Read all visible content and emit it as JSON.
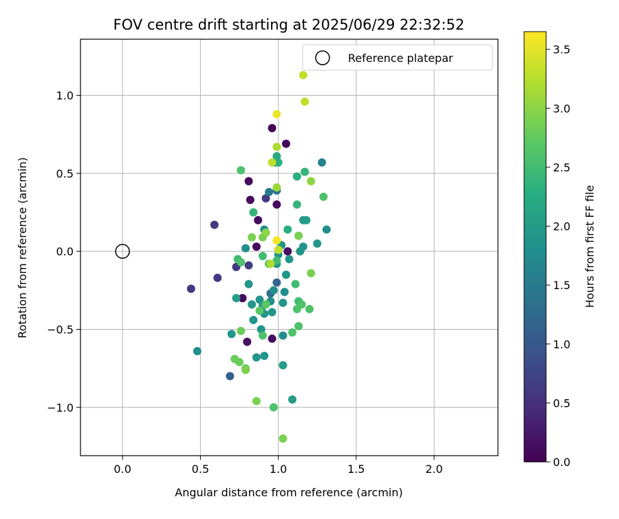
{
  "chart_data": {
    "type": "scatter",
    "title": "FOV centre drift starting at 2025/06/29 22:32:52",
    "xlabel": "Angular distance from reference (arcmin)",
    "ylabel": "Rotation from reference (arcmin)",
    "xlim": [
      -0.27,
      2.41
    ],
    "ylim": [
      -1.31,
      1.36
    ],
    "xticks": [
      0.0,
      0.5,
      1.0,
      1.5,
      2.0
    ],
    "xtick_labels": [
      "0.0",
      "0.5",
      "1.0",
      "1.5",
      "2.0"
    ],
    "yticks": [
      -1.0,
      -0.5,
      0.0,
      0.5,
      1.0
    ],
    "ytick_labels": [
      "−1.0",
      "−0.5",
      "0.0",
      "0.5",
      "1.0"
    ],
    "grid": true,
    "legend": {
      "placement": "top-right",
      "entries": [
        "Reference platepar"
      ]
    },
    "reference_point": {
      "name": "Reference platepar",
      "x": 0.0,
      "y": 0.0
    },
    "colorbar": {
      "label": "Hours from first FF file",
      "colormap": "viridis",
      "range": [
        0.0,
        3.65
      ],
      "ticks": [
        0.0,
        0.5,
        1.0,
        1.5,
        2.0,
        2.5,
        3.0,
        3.5
      ],
      "tick_labels": [
        "0.0",
        "0.5",
        "1.0",
        "1.5",
        "2.0",
        "2.5",
        "3.0",
        "3.5"
      ]
    },
    "points": [
      {
        "x": 0.96,
        "y": 0.79,
        "c": 0.05
      },
      {
        "x": 1.05,
        "y": 0.69,
        "c": 0.05
      },
      {
        "x": 0.99,
        "y": 0.3,
        "c": 0.1
      },
      {
        "x": 0.81,
        "y": 0.45,
        "c": 0.1
      },
      {
        "x": 0.82,
        "y": 0.33,
        "c": 0.1
      },
      {
        "x": 0.87,
        "y": 0.2,
        "c": 0.1
      },
      {
        "x": 0.86,
        "y": 0.03,
        "c": 0.1
      },
      {
        "x": 1.06,
        "y": 0.0,
        "c": 0.15
      },
      {
        "x": 0.77,
        "y": -0.3,
        "c": 0.1
      },
      {
        "x": 0.8,
        "y": -0.58,
        "c": 0.15
      },
      {
        "x": 0.96,
        "y": -0.56,
        "c": 0.15
      },
      {
        "x": 0.92,
        "y": 0.34,
        "c": 0.6
      },
      {
        "x": 0.59,
        "y": 0.17,
        "c": 0.6
      },
      {
        "x": 0.61,
        "y": -0.17,
        "c": 0.6
      },
      {
        "x": 0.44,
        "y": -0.24,
        "c": 0.6
      },
      {
        "x": 0.73,
        "y": -0.1,
        "c": 0.6
      },
      {
        "x": 0.81,
        "y": -0.09,
        "c": 0.65
      },
      {
        "x": 0.99,
        "y": -0.2,
        "c": 1.2
      },
      {
        "x": 0.69,
        "y": -0.8,
        "c": 1.1
      },
      {
        "x": 0.95,
        "y": -0.27,
        "c": 1.3
      },
      {
        "x": 0.99,
        "y": 0.39,
        "c": 1.4
      },
      {
        "x": 0.94,
        "y": 0.38,
        "c": 1.5
      },
      {
        "x": 1.28,
        "y": 0.57,
        "c": 1.6
      },
      {
        "x": 0.48,
        "y": -0.64,
        "c": 1.8
      },
      {
        "x": 0.98,
        "y": 0.57,
        "c": 1.8
      },
      {
        "x": 0.91,
        "y": 0.14,
        "c": 1.8
      },
      {
        "x": 0.79,
        "y": 0.02,
        "c": 1.8
      },
      {
        "x": 1.31,
        "y": 0.14,
        "c": 1.8
      },
      {
        "x": 1.25,
        "y": 0.05,
        "c": 1.9
      },
      {
        "x": 1.16,
        "y": 0.03,
        "c": 1.9
      },
      {
        "x": 1.14,
        "y": 0.0,
        "c": 1.9
      },
      {
        "x": 1.02,
        "y": 0.04,
        "c": 1.9
      },
      {
        "x": 1.0,
        "y": -0.02,
        "c": 1.9
      },
      {
        "x": 1.07,
        "y": -0.05,
        "c": 1.9
      },
      {
        "x": 0.99,
        "y": -0.08,
        "c": 1.9
      },
      {
        "x": 1.05,
        "y": -0.15,
        "c": 1.9
      },
      {
        "x": 0.81,
        "y": -0.21,
        "c": 1.9
      },
      {
        "x": 0.97,
        "y": -0.25,
        "c": 1.8
      },
      {
        "x": 1.04,
        "y": -0.26,
        "c": 1.8
      },
      {
        "x": 0.95,
        "y": -0.32,
        "c": 1.8
      },
      {
        "x": 0.88,
        "y": -0.31,
        "c": 1.9
      },
      {
        "x": 0.83,
        "y": -0.34,
        "c": 1.9
      },
      {
        "x": 0.9,
        "y": -0.35,
        "c": 1.9
      },
      {
        "x": 1.03,
        "y": -0.33,
        "c": 1.9
      },
      {
        "x": 0.96,
        "y": -0.39,
        "c": 1.9
      },
      {
        "x": 0.91,
        "y": -0.4,
        "c": 1.9
      },
      {
        "x": 0.84,
        "y": -0.44,
        "c": 1.9
      },
      {
        "x": 0.89,
        "y": -0.5,
        "c": 1.9
      },
      {
        "x": 1.03,
        "y": -0.54,
        "c": 1.8
      },
      {
        "x": 0.7,
        "y": -0.53,
        "c": 1.9
      },
      {
        "x": 0.86,
        "y": -0.68,
        "c": 1.9
      },
      {
        "x": 0.91,
        "y": -0.67,
        "c": 1.9
      },
      {
        "x": 1.03,
        "y": -0.73,
        "c": 2.0
      },
      {
        "x": 1.09,
        "y": -0.95,
        "c": 2.0
      },
      {
        "x": 1.16,
        "y": 0.2,
        "c": 2.0
      },
      {
        "x": 1.18,
        "y": 0.2,
        "c": 2.0
      },
      {
        "x": 0.73,
        "y": -0.3,
        "c": 2.0
      },
      {
        "x": 0.99,
        "y": 0.61,
        "c": 2.2
      },
      {
        "x": 1.0,
        "y": 0.57,
        "c": 2.3
      },
      {
        "x": 1.12,
        "y": 0.48,
        "c": 2.3
      },
      {
        "x": 1.17,
        "y": 0.51,
        "c": 2.4
      },
      {
        "x": 1.12,
        "y": 0.3,
        "c": 2.4
      },
      {
        "x": 0.84,
        "y": 0.25,
        "c": 2.4
      },
      {
        "x": 1.06,
        "y": 0.14,
        "c": 2.3
      },
      {
        "x": 0.76,
        "y": 0.52,
        "c": 2.6
      },
      {
        "x": 1.29,
        "y": 0.35,
        "c": 2.6
      },
      {
        "x": 0.74,
        "y": -0.05,
        "c": 2.5
      },
      {
        "x": 0.76,
        "y": -0.07,
        "c": 2.6
      },
      {
        "x": 0.9,
        "y": -0.03,
        "c": 2.5
      },
      {
        "x": 0.94,
        "y": -0.08,
        "c": 2.5
      },
      {
        "x": 0.99,
        "y": -0.06,
        "c": 2.5
      },
      {
        "x": 1.11,
        "y": -0.21,
        "c": 2.5
      },
      {
        "x": 1.13,
        "y": -0.32,
        "c": 2.5
      },
      {
        "x": 1.15,
        "y": -0.34,
        "c": 2.6
      },
      {
        "x": 1.12,
        "y": -0.37,
        "c": 2.6
      },
      {
        "x": 1.2,
        "y": -0.37,
        "c": 2.6
      },
      {
        "x": 1.13,
        "y": -0.48,
        "c": 2.6
      },
      {
        "x": 1.09,
        "y": -0.52,
        "c": 2.6
      },
      {
        "x": 0.9,
        "y": -0.54,
        "c": 2.6
      },
      {
        "x": 0.97,
        "y": -1.0,
        "c": 2.6
      },
      {
        "x": 0.92,
        "y": -0.34,
        "c": 2.7
      },
      {
        "x": 0.88,
        "y": -0.38,
        "c": 2.7
      },
      {
        "x": 0.76,
        "y": -0.51,
        "c": 2.8
      },
      {
        "x": 0.72,
        "y": -0.69,
        "c": 2.8
      },
      {
        "x": 0.75,
        "y": -0.71,
        "c": 2.8
      },
      {
        "x": 0.79,
        "y": -0.75,
        "c": 2.8
      },
      {
        "x": 0.79,
        "y": -0.76,
        "c": 2.9
      },
      {
        "x": 0.86,
        "y": -0.96,
        "c": 2.9
      },
      {
        "x": 1.03,
        "y": -1.2,
        "c": 2.9
      },
      {
        "x": 0.83,
        "y": 0.09,
        "c": 2.9
      },
      {
        "x": 0.9,
        "y": 0.09,
        "c": 2.9
      },
      {
        "x": 1.13,
        "y": 0.1,
        "c": 2.9
      },
      {
        "x": 1.21,
        "y": -0.14,
        "c": 2.9
      },
      {
        "x": 1.21,
        "y": 0.45,
        "c": 3.0
      },
      {
        "x": 0.92,
        "y": 0.12,
        "c": 3.0
      },
      {
        "x": 0.99,
        "y": 0.41,
        "c": 3.1
      },
      {
        "x": 0.99,
        "y": 0.67,
        "c": 3.2
      },
      {
        "x": 0.96,
        "y": 0.57,
        "c": 3.3
      },
      {
        "x": 1.0,
        "y": 0.01,
        "c": 3.3
      },
      {
        "x": 0.95,
        "y": -0.08,
        "c": 3.2
      },
      {
        "x": 1.16,
        "y": 1.13,
        "c": 3.3
      },
      {
        "x": 1.17,
        "y": 0.96,
        "c": 3.3
      },
      {
        "x": 0.99,
        "y": 0.88,
        "c": 3.55
      },
      {
        "x": 0.99,
        "y": 0.07,
        "c": 3.6
      }
    ]
  }
}
